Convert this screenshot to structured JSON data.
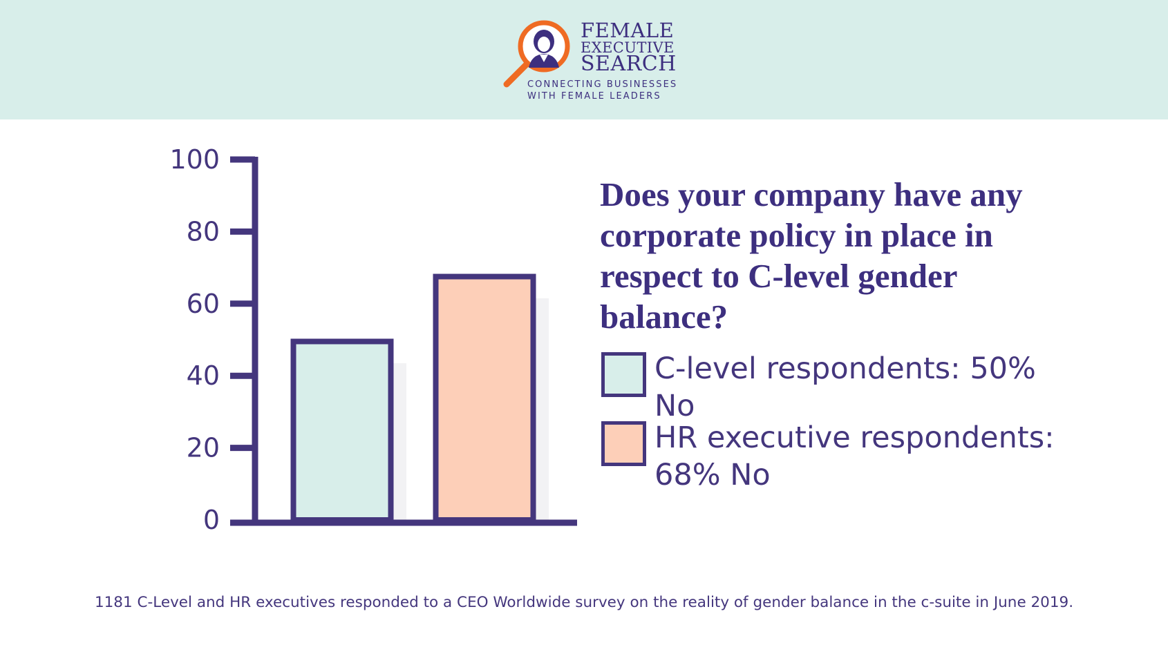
{
  "brand": {
    "line1": "FEMALE",
    "line2": "EXECUTIVE",
    "line3": "SEARCH",
    "tagline1": "CONNECTING BUSINESSES",
    "tagline2": "WITH FEMALE LEADERS",
    "icon": "magnifier-woman-icon",
    "primary_color": "#3d2f7f",
    "accent_color": "#ef6b23"
  },
  "header_color": "#d8eeea",
  "chart_data": {
    "type": "bar",
    "title": "Does your company have any corporate policy in place in respect to C-level gender balance?",
    "categories": [
      "C-level respondents",
      "HR executive respondents"
    ],
    "values": [
      50,
      68
    ],
    "ylim": [
      0,
      100
    ],
    "yticks": [
      0,
      20,
      40,
      60,
      80,
      100
    ],
    "colors": [
      "#d8eeea",
      "#fdcfb8"
    ],
    "outline_color": "#44367d",
    "legend": [
      {
        "label": "C-level respondents: 50% No",
        "color": "#d8eeea"
      },
      {
        "label": "HR executive respondents: 68% No",
        "color": "#fdcfb8"
      }
    ],
    "legend_position": "right",
    "grid": false
  },
  "footnote": "1181 C-Level and HR executives responded to a CEO Worldwide survey on the reality of gender balance in the c-suite in June 2019."
}
